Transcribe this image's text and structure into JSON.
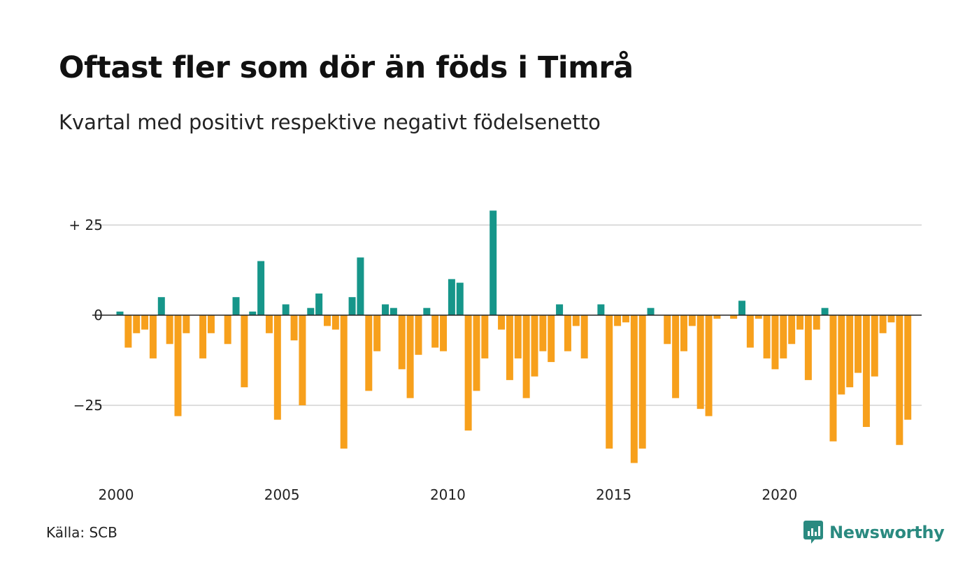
{
  "title": "Oftast fler som dör än föds i Timrå",
  "subtitle": "Kvartal med positivt respektive negativt födelsenetto",
  "source": "Källa: SCB",
  "brand": "Newsworthy",
  "colors": {
    "positive": "#16968a",
    "negative": "#f7a01c",
    "grid": "#dddddd",
    "brand": "#2a8a80"
  },
  "chart_data": {
    "type": "bar",
    "title": "Oftast fler som dör än föds i Timrå",
    "subtitle": "Kvartal med positivt respektive negativt födelsenetto",
    "x_start": "2000 Q1",
    "x_ticks": [
      "2000",
      "2005",
      "2010",
      "2015",
      "2020"
    ],
    "y_ticks": [
      {
        "value": 25,
        "label": "+ 25"
      },
      {
        "value": 0,
        "label": "0"
      },
      {
        "value": -25,
        "label": "−25"
      }
    ],
    "ylim": [
      -42,
      30
    ],
    "grid": true,
    "values": [
      1,
      -9,
      -5,
      -4,
      -12,
      5,
      -8,
      -28,
      -5,
      0,
      -12,
      -5,
      0,
      -8,
      5,
      -20,
      1,
      15,
      -5,
      -29,
      3,
      -7,
      -25,
      2,
      6,
      -3,
      -4,
      -37,
      5,
      16,
      -21,
      -10,
      3,
      2,
      -15,
      -23,
      -11,
      2,
      -9,
      -10,
      10,
      9,
      -32,
      -21,
      -12,
      29,
      -4,
      -18,
      -12,
      -23,
      -17,
      -10,
      -13,
      3,
      -10,
      -3,
      -12,
      0,
      3,
      -37,
      -3,
      -2,
      -41,
      -37,
      2,
      0,
      -8,
      -23,
      -10,
      -3,
      -26,
      -28,
      -1,
      0,
      -1,
      4,
      -9,
      -1,
      -12,
      -15,
      -12,
      -8,
      -4,
      -18,
      -4,
      2,
      -35,
      -22,
      -20,
      -16,
      -31,
      -17,
      -5,
      -2,
      -36,
      -29
    ]
  }
}
